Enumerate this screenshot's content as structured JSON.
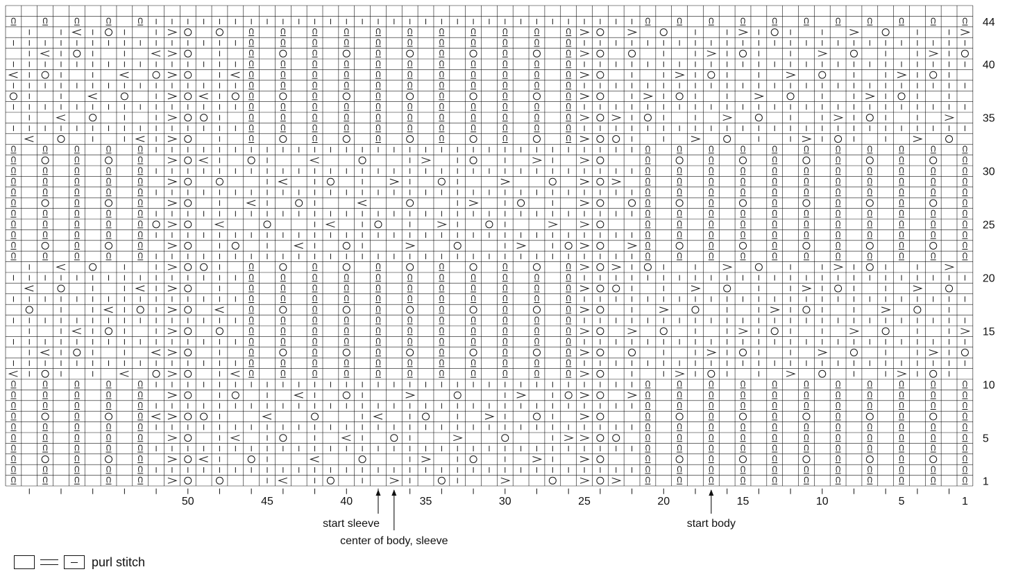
{
  "chart": {
    "title": "",
    "columns": 61,
    "rows": 45,
    "column_ticks": [
      {
        "col": 50,
        "label": "50"
      },
      {
        "col": 45,
        "label": "45"
      },
      {
        "col": 40,
        "label": "40"
      },
      {
        "col": 35,
        "label": "35"
      },
      {
        "col": 30,
        "label": "30"
      },
      {
        "col": 25,
        "label": "25"
      },
      {
        "col": 20,
        "label": "20"
      },
      {
        "col": 15,
        "label": "15"
      },
      {
        "col": 10,
        "label": "10"
      },
      {
        "col": 5,
        "label": "5"
      },
      {
        "col": 1,
        "label": "1"
      }
    ],
    "row_ticks": [
      {
        "row": 44,
        "label": "44"
      },
      {
        "row": 40,
        "label": "40"
      },
      {
        "row": 35,
        "label": "35"
      },
      {
        "row": 30,
        "label": "30"
      },
      {
        "row": 25,
        "label": "25"
      },
      {
        "row": 20,
        "label": "20"
      },
      {
        "row": 15,
        "label": "15"
      },
      {
        "row": 10,
        "label": "10"
      },
      {
        "row": 5,
        "label": "5"
      },
      {
        "row": 1,
        "label": "1"
      }
    ],
    "annotations": [
      {
        "text": "start sleeve",
        "col": 38
      },
      {
        "text": "center of body, sleeve",
        "col": 37
      },
      {
        "text": "start body",
        "col": 17
      }
    ]
  },
  "legend": {
    "label": "purl stitch"
  },
  "symbols": {
    "purl": "purl-dash",
    "yarn_over": "circle",
    "twisted_knit": "twisted-loop",
    "k2tog": "right-slant",
    "ssk": "left-slant"
  }
}
